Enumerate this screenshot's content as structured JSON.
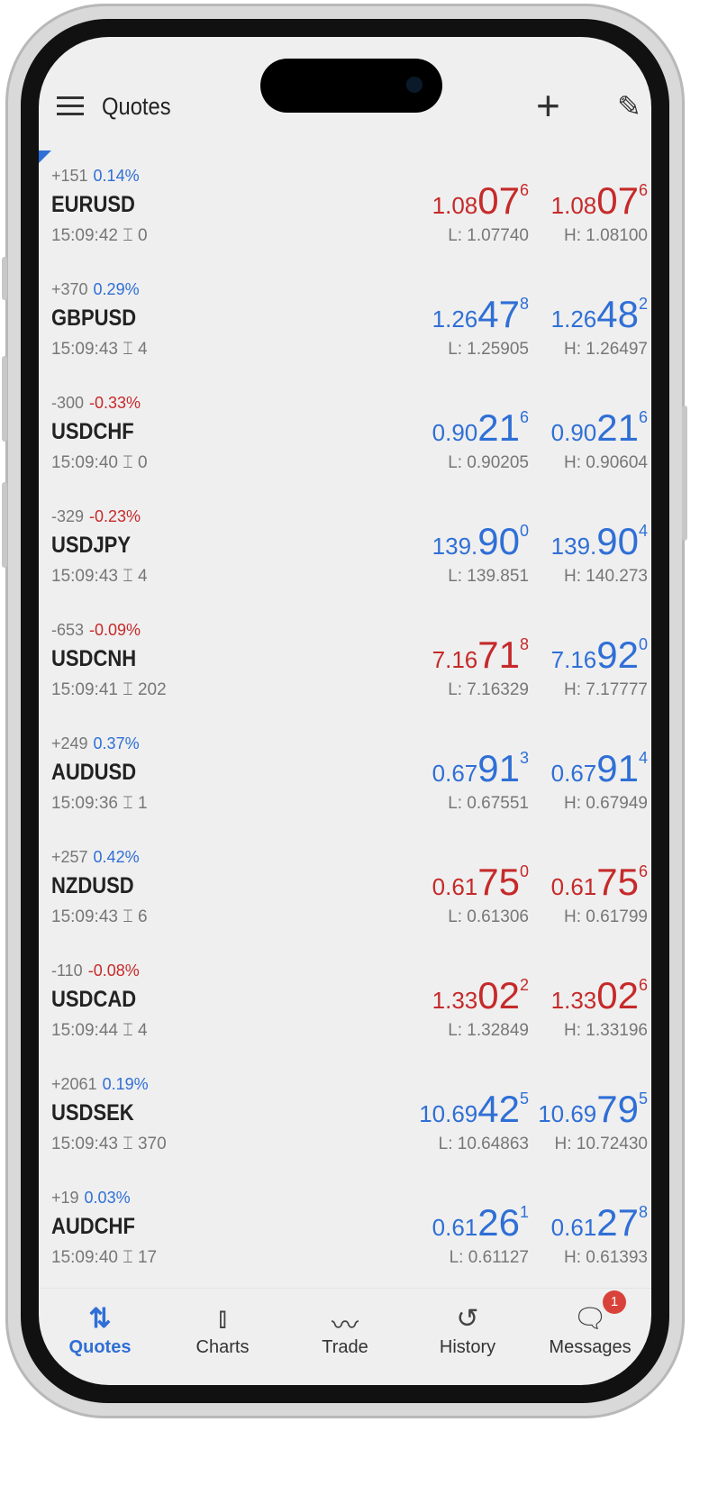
{
  "header": {
    "title": "Quotes",
    "menu_icon": "hamburger-icon",
    "add_icon": "plus-icon",
    "edit_icon": "pencil-icon"
  },
  "colors": {
    "up": "#2f6fd6",
    "down": "#c62a2a"
  },
  "quotes": [
    {
      "symbol": "EURUSD",
      "change": "+151",
      "percent": "0.14%",
      "pct_dir": "up",
      "time": "15:09:42",
      "spread": "0",
      "bid": {
        "p": "1.08",
        "b": "07",
        "s": "6",
        "dir": "down"
      },
      "ask": {
        "p": "1.08",
        "b": "07",
        "s": "6",
        "dir": "down"
      },
      "low": "L: 1.07740",
      "high": "H: 1.08100"
    },
    {
      "symbol": "GBPUSD",
      "change": "+370",
      "percent": "0.29%",
      "pct_dir": "up",
      "time": "15:09:43",
      "spread": "4",
      "bid": {
        "p": "1.26",
        "b": "47",
        "s": "8",
        "dir": "up"
      },
      "ask": {
        "p": "1.26",
        "b": "48",
        "s": "2",
        "dir": "up"
      },
      "low": "L: 1.25905",
      "high": "H: 1.26497"
    },
    {
      "symbol": "USDCHF",
      "change": "-300",
      "percent": "-0.33%",
      "pct_dir": "down",
      "time": "15:09:40",
      "spread": "0",
      "bid": {
        "p": "0.90",
        "b": "21",
        "s": "6",
        "dir": "up"
      },
      "ask": {
        "p": "0.90",
        "b": "21",
        "s": "6",
        "dir": "up"
      },
      "low": "L: 0.90205",
      "high": "H: 0.90604"
    },
    {
      "symbol": "USDJPY",
      "change": "-329",
      "percent": "-0.23%",
      "pct_dir": "down",
      "time": "15:09:43",
      "spread": "4",
      "bid": {
        "p": "139.",
        "b": "90",
        "s": "0",
        "dir": "up"
      },
      "ask": {
        "p": "139.",
        "b": "90",
        "s": "4",
        "dir": "up"
      },
      "low": "L: 139.851",
      "high": "H: 140.273"
    },
    {
      "symbol": "USDCNH",
      "change": "-653",
      "percent": "-0.09%",
      "pct_dir": "down",
      "time": "15:09:41",
      "spread": "202",
      "bid": {
        "p": "7.16",
        "b": "71",
        "s": "8",
        "dir": "down"
      },
      "ask": {
        "p": "7.16",
        "b": "92",
        "s": "0",
        "dir": "up"
      },
      "low": "L: 7.16329",
      "high": "H: 7.17777"
    },
    {
      "symbol": "AUDUSD",
      "change": "+249",
      "percent": "0.37%",
      "pct_dir": "up",
      "time": "15:09:36",
      "spread": "1",
      "bid": {
        "p": "0.67",
        "b": "91",
        "s": "3",
        "dir": "up"
      },
      "ask": {
        "p": "0.67",
        "b": "91",
        "s": "4",
        "dir": "up"
      },
      "low": "L: 0.67551",
      "high": "H: 0.67949"
    },
    {
      "symbol": "NZDUSD",
      "change": "+257",
      "percent": "0.42%",
      "pct_dir": "up",
      "time": "15:09:43",
      "spread": "6",
      "bid": {
        "p": "0.61",
        "b": "75",
        "s": "0",
        "dir": "down"
      },
      "ask": {
        "p": "0.61",
        "b": "75",
        "s": "6",
        "dir": "down"
      },
      "low": "L: 0.61306",
      "high": "H: 0.61799"
    },
    {
      "symbol": "USDCAD",
      "change": "-110",
      "percent": "-0.08%",
      "pct_dir": "down",
      "time": "15:09:44",
      "spread": "4",
      "bid": {
        "p": "1.33",
        "b": "02",
        "s": "2",
        "dir": "down"
      },
      "ask": {
        "p": "1.33",
        "b": "02",
        "s": "6",
        "dir": "down"
      },
      "low": "L: 1.32849",
      "high": "H: 1.33196"
    },
    {
      "symbol": "USDSEK",
      "change": "+2061",
      "percent": "0.19%",
      "pct_dir": "up",
      "time": "15:09:43",
      "spread": "370",
      "bid": {
        "p": "10.69",
        "b": "42",
        "s": "5",
        "dir": "up"
      },
      "ask": {
        "p": "10.69",
        "b": "79",
        "s": "5",
        "dir": "up"
      },
      "low": "L: 10.64863",
      "high": "H: 10.72430"
    },
    {
      "symbol": "AUDCHF",
      "change": "+19",
      "percent": "0.03%",
      "pct_dir": "up",
      "time": "15:09:40",
      "spread": "17",
      "bid": {
        "p": "0.61",
        "b": "26",
        "s": "1",
        "dir": "up"
      },
      "ask": {
        "p": "0.61",
        "b": "27",
        "s": "8",
        "dir": "up"
      },
      "low": "L: 0.61127",
      "high": "H: 0.61393"
    }
  ],
  "nav": [
    {
      "label": "Quotes",
      "icon": "arrows-updown-icon",
      "glyph": "⇅",
      "active": true
    },
    {
      "label": "Charts",
      "icon": "candlestick-icon",
      "glyph": "⫾",
      "active": false
    },
    {
      "label": "Trade",
      "icon": "trend-line-icon",
      "glyph": "〰",
      "active": false
    },
    {
      "label": "History",
      "icon": "history-icon",
      "glyph": "↺",
      "active": false
    },
    {
      "label": "Messages",
      "icon": "messages-icon",
      "glyph": "🗨",
      "active": false,
      "badge": "1"
    }
  ]
}
